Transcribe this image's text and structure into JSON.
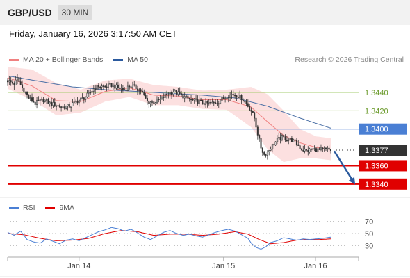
{
  "header": {
    "symbol": "GBP/USD",
    "timeframe": "30 MIN"
  },
  "datetime": "Friday, January 16, 2026 3:17:50 AM CET",
  "copyright": "Research © 2026 Trading Central",
  "legend": [
    {
      "label": "MA 20 + Bollinger Bands",
      "color": "#f08080"
    },
    {
      "label": "MA 50",
      "color": "#2b5a9e"
    }
  ],
  "rsi_legend": [
    {
      "label": "RSI",
      "color": "#4a7fd4"
    },
    {
      "label": "9MA",
      "color": "#e00000"
    }
  ],
  "colors": {
    "up_candle": "#ffffff",
    "down_candle": "#333333",
    "bollinger_fill": "#fce0e0",
    "ma20": "#f08080",
    "ma50": "#4a6fa5",
    "pivot_line": "#a6cc70",
    "resistance_line": "#4a7fd4",
    "support_line": "#e00000",
    "current_price_badge": "#333333",
    "arrow": "#2b5a9e"
  },
  "chart_data": [
    {
      "type": "candlestick",
      "title": "GBP/USD 30 MIN",
      "x_tick_labels": [
        "Jan 14",
        "Jan 15",
        "Jan 16"
      ],
      "ylim": [
        1.333,
        1.3465
      ],
      "current_price": 1.3377,
      "levels": [
        {
          "label": "1.3440",
          "value": 1.344,
          "kind": "pivot"
        },
        {
          "label": "1.3420",
          "value": 1.342,
          "kind": "pivot"
        },
        {
          "label": "1.3400",
          "value": 1.34,
          "kind": "resistance"
        },
        {
          "label": "1.3360",
          "value": 1.336,
          "kind": "support"
        },
        {
          "label": "1.3340",
          "value": 1.334,
          "kind": "support"
        }
      ],
      "forecast_arrow": {
        "from": 1.3376,
        "to": 1.3342
      },
      "close_path": [
        [
          0,
          1.3453
        ],
        [
          4,
          1.3449
        ],
        [
          6,
          1.3455
        ],
        [
          9,
          1.3445
        ],
        [
          11,
          1.344
        ],
        [
          13,
          1.3434
        ],
        [
          17,
          1.3428
        ],
        [
          22,
          1.3432
        ],
        [
          26,
          1.3428
        ],
        [
          30,
          1.3426
        ],
        [
          34,
          1.3424
        ],
        [
          38,
          1.3425
        ],
        [
          42,
          1.343
        ],
        [
          46,
          1.3433
        ],
        [
          50,
          1.3438
        ],
        [
          53,
          1.3444
        ],
        [
          56,
          1.3447
        ],
        [
          60,
          1.3446
        ],
        [
          64,
          1.3448
        ],
        [
          68,
          1.3445
        ],
        [
          72,
          1.3443
        ],
        [
          75,
          1.3447
        ],
        [
          78,
          1.3446
        ],
        [
          82,
          1.3442
        ],
        [
          86,
          1.343
        ],
        [
          90,
          1.3429
        ],
        [
          94,
          1.3432
        ],
        [
          98,
          1.3438
        ],
        [
          102,
          1.3441
        ],
        [
          106,
          1.3438
        ],
        [
          110,
          1.3434
        ],
        [
          114,
          1.3431
        ],
        [
          118,
          1.343
        ],
        [
          122,
          1.3428
        ],
        [
          126,
          1.3428
        ],
        [
          130,
          1.343
        ],
        [
          134,
          1.3435
        ],
        [
          138,
          1.3438
        ],
        [
          141,
          1.3437
        ],
        [
          144,
          1.3434
        ],
        [
          147,
          1.3428
        ],
        [
          150,
          1.342
        ],
        [
          152,
          1.3412
        ],
        [
          154,
          1.3395
        ],
        [
          156,
          1.338
        ],
        [
          158,
          1.3372
        ],
        [
          160,
          1.3375
        ],
        [
          163,
          1.3382
        ],
        [
          166,
          1.3388
        ],
        [
          169,
          1.3391
        ],
        [
          172,
          1.3389
        ],
        [
          175,
          1.3388
        ],
        [
          178,
          1.3384
        ],
        [
          181,
          1.3378
        ],
        [
          184,
          1.3376
        ],
        [
          188,
          1.3378
        ],
        [
          192,
          1.3377
        ],
        [
          196,
          1.3378
        ],
        [
          199,
          1.3377
        ]
      ],
      "ma50_path": [
        [
          0,
          1.3458
        ],
        [
          20,
          1.3452
        ],
        [
          40,
          1.3446
        ],
        [
          60,
          1.3443
        ],
        [
          80,
          1.3441
        ],
        [
          100,
          1.3439
        ],
        [
          120,
          1.3437
        ],
        [
          140,
          1.3434
        ],
        [
          160,
          1.3425
        ],
        [
          180,
          1.3412
        ],
        [
          199,
          1.3401
        ]
      ],
      "bollinger": {
        "mid": [
          [
            0,
            1.3456
          ],
          [
            15,
            1.3447
          ],
          [
            30,
            1.3431
          ],
          [
            45,
            1.343
          ],
          [
            60,
            1.3441
          ],
          [
            75,
            1.3445
          ],
          [
            90,
            1.3437
          ],
          [
            105,
            1.3436
          ],
          [
            120,
            1.3432
          ],
          [
            135,
            1.3432
          ],
          [
            150,
            1.3424
          ],
          [
            160,
            1.3408
          ],
          [
            170,
            1.3393
          ],
          [
            180,
            1.3385
          ],
          [
            190,
            1.338
          ],
          [
            199,
            1.3378
          ]
        ],
        "upper": [
          [
            0,
            1.3468
          ],
          [
            15,
            1.3465
          ],
          [
            30,
            1.345
          ],
          [
            45,
            1.3443
          ],
          [
            60,
            1.3453
          ],
          [
            75,
            1.3455
          ],
          [
            90,
            1.3448
          ],
          [
            105,
            1.3446
          ],
          [
            120,
            1.3442
          ],
          [
            135,
            1.3443
          ],
          [
            150,
            1.3446
          ],
          [
            160,
            1.3438
          ],
          [
            170,
            1.342
          ],
          [
            180,
            1.34
          ],
          [
            190,
            1.3392
          ],
          [
            199,
            1.339
          ]
        ],
        "lower": [
          [
            0,
            1.3444
          ],
          [
            15,
            1.3432
          ],
          [
            30,
            1.3415
          ],
          [
            45,
            1.3418
          ],
          [
            60,
            1.343
          ],
          [
            75,
            1.3435
          ],
          [
            90,
            1.3426
          ],
          [
            105,
            1.3426
          ],
          [
            120,
            1.3422
          ],
          [
            135,
            1.3421
          ],
          [
            150,
            1.3402
          ],
          [
            160,
            1.3378
          ],
          [
            170,
            1.3364
          ],
          [
            180,
            1.3368
          ],
          [
            190,
            1.3368
          ],
          [
            199,
            1.3366
          ]
        ]
      }
    },
    {
      "type": "line",
      "title": "RSI",
      "ylim": [
        20,
        80
      ],
      "y_tick_labels": [
        "70",
        "50",
        "30"
      ],
      "y_ticks": [
        70,
        50,
        30
      ],
      "series": [
        {
          "name": "RSI",
          "points": [
            [
              0,
              52
            ],
            [
              4,
              47
            ],
            [
              8,
              54
            ],
            [
              12,
              40
            ],
            [
              16,
              36
            ],
            [
              20,
              34
            ],
            [
              24,
              41
            ],
            [
              28,
              37
            ],
            [
              32,
              33
            ],
            [
              36,
              39
            ],
            [
              40,
              41
            ],
            [
              44,
              38
            ],
            [
              48,
              43
            ],
            [
              52,
              48
            ],
            [
              56,
              53
            ],
            [
              60,
              56
            ],
            [
              64,
              60
            ],
            [
              68,
              58
            ],
            [
              72,
              54
            ],
            [
              76,
              57
            ],
            [
              80,
              51
            ],
            [
              84,
              44
            ],
            [
              88,
              40
            ],
            [
              92,
              46
            ],
            [
              96,
              52
            ],
            [
              100,
              55
            ],
            [
              104,
              50
            ],
            [
              108,
              47
            ],
            [
              112,
              49
            ],
            [
              116,
              46
            ],
            [
              120,
              44
            ],
            [
              124,
              48
            ],
            [
              128,
              52
            ],
            [
              132,
              55
            ],
            [
              136,
              57
            ],
            [
              140,
              54
            ],
            [
              144,
              48
            ],
            [
              148,
              42
            ],
            [
              150,
              34
            ],
            [
              153,
              27
            ],
            [
              156,
              24
            ],
            [
              159,
              28
            ],
            [
              162,
              35
            ],
            [
              166,
              38
            ],
            [
              170,
              43
            ],
            [
              174,
              41
            ],
            [
              178,
              39
            ],
            [
              182,
              41
            ],
            [
              186,
              40
            ],
            [
              190,
              41
            ],
            [
              194,
              42
            ],
            [
              199,
              44
            ]
          ]
        },
        {
          "name": "9MA",
          "points": [
            [
              0,
              50
            ],
            [
              10,
              48
            ],
            [
              20,
              42
            ],
            [
              30,
              38
            ],
            [
              40,
              39
            ],
            [
              50,
              42
            ],
            [
              60,
              50
            ],
            [
              70,
              55
            ],
            [
              80,
              53
            ],
            [
              90,
              47
            ],
            [
              100,
              49
            ],
            [
              110,
              49
            ],
            [
              120,
              47
            ],
            [
              130,
              49
            ],
            [
              140,
              53
            ],
            [
              148,
              49
            ],
            [
              155,
              40
            ],
            [
              162,
              33
            ],
            [
              170,
              35
            ],
            [
              178,
              39
            ],
            [
              186,
              40
            ],
            [
              192,
              40
            ],
            [
              199,
              41
            ]
          ]
        }
      ]
    }
  ]
}
